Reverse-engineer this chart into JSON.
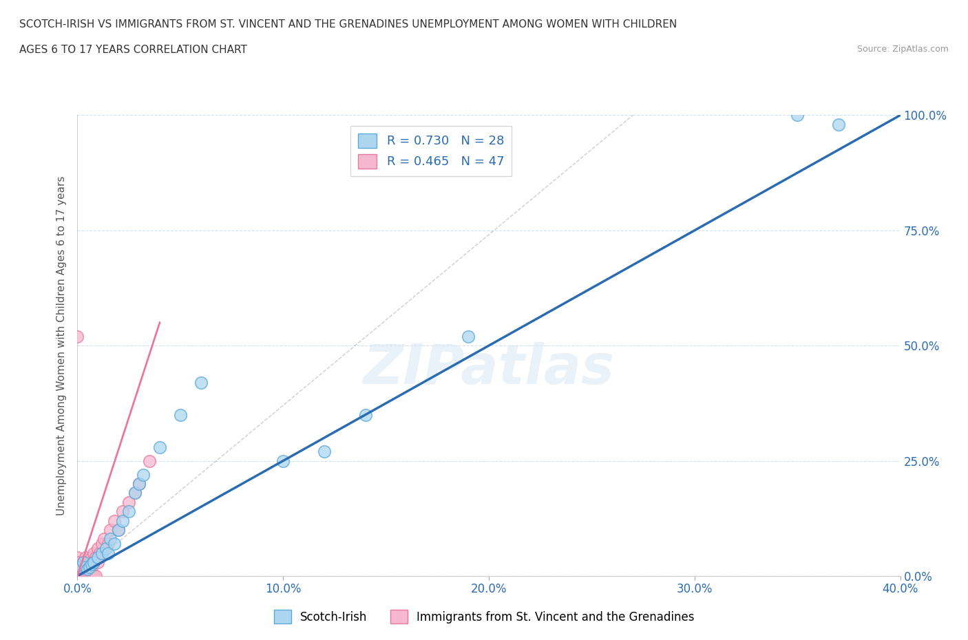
{
  "title_line1": "SCOTCH-IRISH VS IMMIGRANTS FROM ST. VINCENT AND THE GRENADINES UNEMPLOYMENT AMONG WOMEN WITH CHILDREN",
  "title_line2": "AGES 6 TO 17 YEARS CORRELATION CHART",
  "source": "Source: ZipAtlas.com",
  "ylabel": "Unemployment Among Women with Children Ages 6 to 17 years",
  "xlim": [
    0.0,
    0.4
  ],
  "ylim": [
    0.0,
    1.0
  ],
  "xticks": [
    0.0,
    0.1,
    0.2,
    0.3,
    0.4
  ],
  "xtick_labels": [
    "0.0%",
    "10.0%",
    "20.0%",
    "30.0%",
    "40.0%"
  ],
  "yticks": [
    0.0,
    0.25,
    0.5,
    0.75,
    1.0
  ],
  "ytick_labels": [
    "0.0%",
    "25.0%",
    "50.0%",
    "75.0%",
    "100.0%"
  ],
  "blue_R": 0.73,
  "blue_N": 28,
  "pink_R": 0.465,
  "pink_N": 47,
  "blue_color": "#aed6f0",
  "pink_color": "#f5b8ce",
  "blue_edge": "#5aaad8",
  "pink_edge": "#e8799e",
  "blue_line_color": "#2b6cb0",
  "pink_line_color": "#e8799e",
  "grid_color": "#c8d8ec",
  "watermark": "ZIPatlas",
  "blue_scatter_x": [
    0.002,
    0.003,
    0.004,
    0.005,
    0.006,
    0.007,
    0.008,
    0.01,
    0.012,
    0.014,
    0.015,
    0.016,
    0.018,
    0.02,
    0.022,
    0.025,
    0.028,
    0.03,
    0.032,
    0.04,
    0.05,
    0.06,
    0.1,
    0.12,
    0.14,
    0.19,
    0.35,
    0.37
  ],
  "blue_scatter_y": [
    0.02,
    0.03,
    0.02,
    0.015,
    0.02,
    0.025,
    0.03,
    0.04,
    0.05,
    0.06,
    0.05,
    0.08,
    0.07,
    0.1,
    0.12,
    0.14,
    0.18,
    0.2,
    0.22,
    0.28,
    0.35,
    0.42,
    0.25,
    0.27,
    0.35,
    0.52,
    1.0,
    0.98
  ],
  "pink_scatter_x": [
    0.0,
    0.0,
    0.0,
    0.0,
    0.0,
    0.001,
    0.001,
    0.001,
    0.002,
    0.002,
    0.003,
    0.003,
    0.004,
    0.004,
    0.005,
    0.005,
    0.006,
    0.006,
    0.007,
    0.007,
    0.008,
    0.008,
    0.009,
    0.01,
    0.01,
    0.011,
    0.012,
    0.013,
    0.015,
    0.016,
    0.018,
    0.02,
    0.022,
    0.025,
    0.028,
    0.03,
    0.035,
    0.0,
    0.001,
    0.002,
    0.003,
    0.004,
    0.005,
    0.006,
    0.007,
    0.008,
    0.009
  ],
  "pink_scatter_y": [
    0.0,
    0.01,
    0.02,
    0.03,
    0.04,
    0.01,
    0.02,
    0.03,
    0.01,
    0.02,
    0.01,
    0.03,
    0.02,
    0.04,
    0.01,
    0.02,
    0.01,
    0.03,
    0.02,
    0.04,
    0.03,
    0.05,
    0.04,
    0.03,
    0.06,
    0.05,
    0.07,
    0.08,
    0.07,
    0.1,
    0.12,
    0.1,
    0.14,
    0.16,
    0.18,
    0.2,
    0.25,
    0.52,
    0.0,
    0.0,
    0.0,
    0.0,
    0.0,
    0.0,
    0.0,
    0.0,
    0.0
  ],
  "blue_line_x": [
    0.0,
    0.4
  ],
  "blue_line_y": [
    0.0,
    1.0
  ],
  "pink_line_x": [
    0.0,
    0.04
  ],
  "pink_line_y": [
    0.0,
    0.55
  ],
  "gray_line_x": [
    0.0,
    0.27
  ],
  "gray_line_y": [
    0.0,
    1.0
  ]
}
